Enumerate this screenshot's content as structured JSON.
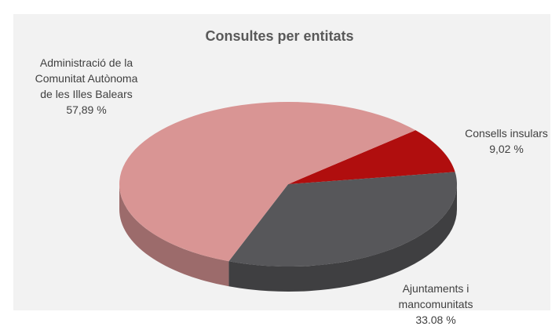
{
  "chart_data": {
    "type": "pie",
    "title": "Consultes per entitats",
    "categories": [
      "Consells insulars",
      "Ajuntaments i mancomunitats",
      "Administració de la Comunitat Autònoma de les Illes Balears"
    ],
    "values": [
      9.02,
      33.08,
      57.89
    ],
    "value_labels": [
      "9,02 %",
      "33.08 %",
      "57,89 %"
    ],
    "colors": [
      "#b00e0e",
      "#57575a",
      "#d99594"
    ]
  }
}
